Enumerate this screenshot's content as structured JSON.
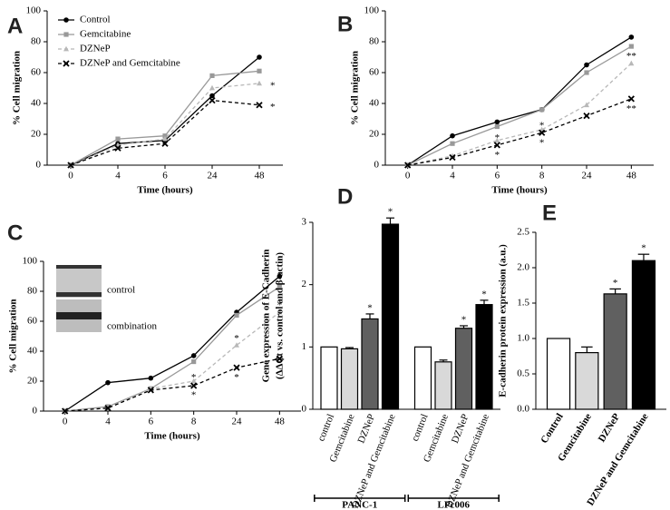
{
  "chart_data": [
    {
      "type": "line",
      "panel": "A",
      "xlabel": "Time (hours)",
      "ylabel": "% Cell migration",
      "categories": [
        "0",
        "4",
        "6",
        "24",
        "48"
      ],
      "ylim": [
        0,
        100
      ],
      "yticks": [
        0,
        20,
        40,
        60,
        80,
        100
      ],
      "legend": "top-left",
      "series": [
        {
          "name": "Control",
          "color": "#000000",
          "marker": "circle",
          "dashed": false,
          "values": [
            0,
            14,
            16,
            45,
            70
          ]
        },
        {
          "name": "Gemcitabine",
          "color": "#999999",
          "marker": "square",
          "dashed": false,
          "values": [
            0,
            17,
            19,
            58,
            61
          ]
        },
        {
          "name": "DZNeP",
          "color": "#b8b8b8",
          "marker": "triangle",
          "dashed": true,
          "values": [
            0,
            13,
            17,
            50,
            53
          ]
        },
        {
          "name": "DZNeP and Gemcitabine",
          "color": "#000000",
          "marker": "cross",
          "dashed": true,
          "values": [
            0,
            11,
            14,
            42,
            39
          ]
        }
      ],
      "annotations": [
        {
          "text": "*",
          "x": "48",
          "y": 53
        },
        {
          "text": "*",
          "x": "48",
          "y": 39
        }
      ]
    },
    {
      "type": "line",
      "panel": "B",
      "xlabel": "Time (hours)",
      "ylabel": "% Cell migration",
      "categories": [
        "0",
        "4",
        "6",
        "8",
        "24",
        "48"
      ],
      "ylim": [
        0,
        100
      ],
      "yticks": [
        0,
        20,
        40,
        60,
        80,
        100
      ],
      "series": [
        {
          "name": "Control",
          "color": "#000000",
          "marker": "circle",
          "dashed": false,
          "values": [
            0,
            19,
            28,
            36,
            65,
            83
          ]
        },
        {
          "name": "Gemcitabine",
          "color": "#999999",
          "marker": "square",
          "dashed": false,
          "values": [
            0,
            14,
            25,
            36,
            60,
            77
          ]
        },
        {
          "name": "DZNeP",
          "color": "#b8b8b8",
          "marker": "triangle",
          "dashed": true,
          "values": [
            0,
            6,
            16,
            23,
            39,
            66
          ]
        },
        {
          "name": "DZNeP and Gemcitabine",
          "color": "#000000",
          "marker": "cross",
          "dashed": true,
          "values": [
            0,
            5,
            13,
            21,
            32,
            43
          ]
        }
      ],
      "annotations": [
        {
          "text": "*",
          "x": "6",
          "y": 19
        },
        {
          "text": "*",
          "x": "6",
          "y": 8
        },
        {
          "text": "*",
          "x": "8",
          "y": 27
        },
        {
          "text": "*",
          "x": "8",
          "y": 16
        },
        {
          "text": "**",
          "x": "48",
          "y": 72
        },
        {
          "text": "**",
          "x": "48",
          "y": 38
        }
      ]
    },
    {
      "type": "line",
      "panel": "C",
      "xlabel": "Time (hours)",
      "ylabel": "% Cell migration",
      "categories": [
        "0",
        "4",
        "6",
        "8",
        "24",
        "48"
      ],
      "ylim": [
        0,
        100
      ],
      "yticks": [
        0,
        20,
        40,
        60,
        80,
        100
      ],
      "inset_labels": [
        "control",
        "combination"
      ],
      "series": [
        {
          "name": "Control",
          "color": "#000000",
          "marker": "circle",
          "dashed": false,
          "values": [
            0,
            19,
            22,
            37,
            66,
            90
          ]
        },
        {
          "name": "Gemcitabine",
          "color": "#999999",
          "marker": "square",
          "dashed": false,
          "values": [
            0,
            3,
            15,
            33,
            64,
            83
          ]
        },
        {
          "name": "DZNeP",
          "color": "#b8b8b8",
          "marker": "triangle",
          "dashed": true,
          "values": [
            0,
            2,
            15,
            20,
            44,
            66
          ]
        },
        {
          "name": "DZNeP and Gemcitabine",
          "color": "#000000",
          "marker": "cross",
          "dashed": true,
          "values": [
            0,
            2,
            14,
            17,
            29,
            35
          ]
        }
      ],
      "annotations": [
        {
          "text": "*",
          "x": "8",
          "y": 24
        },
        {
          "text": "*",
          "x": "8",
          "y": 12
        },
        {
          "text": "*",
          "x": "24",
          "y": 50
        },
        {
          "text": "*",
          "x": "24",
          "y": 24
        },
        {
          "text": "*",
          "x": "48",
          "y": 72
        },
        {
          "text": "**",
          "x": "48",
          "y": 35
        }
      ]
    },
    {
      "type": "bar",
      "panel": "D",
      "ylabel": [
        "Gene expression of E-Cadherin",
        "(ΔΔCt vs. control and β-actin)"
      ],
      "ylim": [
        0,
        3
      ],
      "yticks": [
        0,
        1,
        2,
        3
      ],
      "colors": [
        "#ffffff",
        "#d9d9d9",
        "#606060",
        "#000000"
      ],
      "groups": [
        {
          "name": "PANC-1",
          "categories": [
            "control",
            "Gemcitabine",
            "DZNeP",
            "DZNeP and Gemcitabine"
          ],
          "values": [
            1,
            0.97,
            1.45,
            2.97
          ],
          "errors": [
            0,
            0.02,
            0.08,
            0.1
          ],
          "significance": [
            null,
            null,
            "*",
            "*"
          ]
        },
        {
          "name": "LPc006",
          "categories": [
            "control",
            "Gemcitabine",
            "DZNeP",
            "DZNeP and Gemcitabine"
          ],
          "values": [
            1,
            0.76,
            1.3,
            1.68
          ],
          "errors": [
            0,
            0.03,
            0.04,
            0.07
          ],
          "significance": [
            null,
            null,
            "*",
            "*"
          ]
        }
      ]
    },
    {
      "type": "bar",
      "panel": "E",
      "ylabel": [
        "E-cadherin protein expression (a.u.)"
      ],
      "ylim": [
        0,
        2.5
      ],
      "yticks": [
        {
          "value": 0,
          "label": "0.0"
        },
        0.5,
        {
          "value": 1,
          "label": "1.0"
        },
        1.5,
        {
          "value": 2,
          "label": "2.0"
        },
        2.5
      ],
      "colors": [
        "#ffffff",
        "#d9d9d9",
        "#606060",
        "#000000"
      ],
      "groups": [
        {
          "categories": [
            "Control",
            "Gemcitabine",
            "DZNeP",
            "DZNeP and Gemcitabine"
          ],
          "values": [
            1,
            0.8,
            1.63,
            2.1
          ],
          "errors": [
            0,
            0.08,
            0.07,
            0.09
          ],
          "significance": [
            null,
            null,
            "*",
            "*"
          ]
        }
      ]
    }
  ]
}
